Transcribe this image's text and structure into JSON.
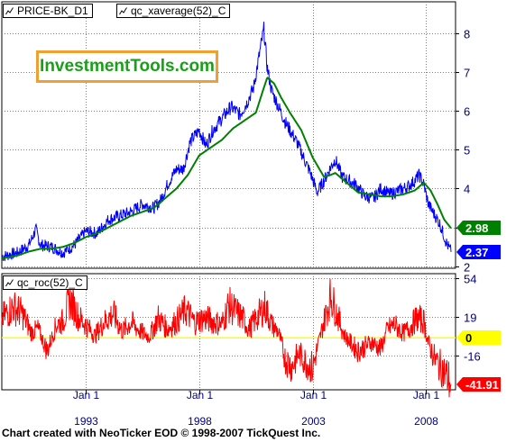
{
  "colors": {
    "price": "#0000ff",
    "average": "#008000",
    "roc": "#ff0000",
    "zero_line": "#ffff00",
    "axis_text": "#000080",
    "brand_border": "#f0a030",
    "brand_text": "#18a018"
  },
  "legends": {
    "price": "PRICE-BK_D1",
    "average": "qc_xaverage(52)_C",
    "roc": "qc_roc(52)_C",
    "icon": "line-chart-icon"
  },
  "brand": "InvestmentTools.com",
  "footer": "Chart created with NeoTicker EOD © 1998-2007 TickQuest Inc.",
  "chart_data": [
    {
      "type": "line",
      "panel": "price",
      "x_range": [
        1989.3,
        2009.3
      ],
      "ylim": [
        1.95,
        8.8
      ],
      "y_ticks": [
        "2",
        "3",
        "4",
        "5",
        "6",
        "7",
        "8"
      ],
      "grid": true,
      "series": [
        {
          "name": "PRICE-BK_D1",
          "x": [
            1989.3,
            1990.0,
            1990.5,
            1990.8,
            1991.0,
            1991.5,
            1992.0,
            1992.5,
            1993.0,
            1993.5,
            1994.0,
            1994.5,
            1995.0,
            1995.5,
            1996.0,
            1996.3,
            1996.6,
            1997.0,
            1997.3,
            1997.6,
            1998.0,
            1998.3,
            1998.6,
            1999.0,
            1999.4,
            1999.8,
            2000.1,
            2000.4,
            2000.7,
            2000.85,
            2001.0,
            2001.2,
            2001.5,
            2001.8,
            2002.0,
            2002.3,
            2002.6,
            2002.9,
            2003.2,
            2003.5,
            2003.8,
            2004.0,
            2004.3,
            2004.6,
            2004.9,
            2005.3,
            2005.7,
            2006.0,
            2006.4,
            2006.8,
            2007.2,
            2007.5,
            2007.7,
            2007.9,
            2008.1,
            2008.3,
            2008.6,
            2008.9,
            2009.1
          ],
          "y": [
            2.25,
            2.35,
            2.55,
            2.95,
            2.55,
            2.5,
            2.35,
            2.55,
            2.9,
            2.85,
            3.2,
            3.3,
            3.4,
            3.6,
            3.5,
            3.7,
            4.1,
            4.5,
            4.5,
            5.2,
            5.5,
            5.1,
            5.5,
            5.8,
            6.1,
            5.9,
            6.2,
            6.6,
            7.6,
            8.1,
            7.1,
            6.5,
            6.1,
            5.7,
            5.5,
            5.2,
            4.8,
            4.4,
            3.9,
            4.2,
            4.55,
            4.75,
            4.3,
            4.2,
            4.1,
            3.8,
            3.75,
            4.0,
            3.85,
            3.95,
            4.05,
            4.2,
            4.35,
            4.1,
            3.6,
            3.4,
            3.1,
            2.6,
            2.37
          ]
        },
        {
          "name": "qc_xaverage(52)_C",
          "x": [
            1989.3,
            1990.0,
            1990.5,
            1991.0,
            1991.5,
            1992.0,
            1992.5,
            1993.0,
            1993.5,
            1994.0,
            1994.5,
            1995.0,
            1995.5,
            1996.0,
            1996.5,
            1997.0,
            1997.5,
            1998.0,
            1998.5,
            1999.0,
            1999.5,
            2000.0,
            2000.5,
            2000.8,
            2001.0,
            2001.3,
            2001.6,
            2002.0,
            2002.5,
            2003.0,
            2003.5,
            2003.8,
            2004.0,
            2004.5,
            2005.0,
            2005.5,
            2006.0,
            2006.5,
            2007.0,
            2007.5,
            2007.9,
            2008.2,
            2008.5,
            2008.8,
            2009.1
          ],
          "y": [
            2.2,
            2.28,
            2.38,
            2.45,
            2.45,
            2.5,
            2.6,
            2.75,
            2.85,
            3.0,
            3.15,
            3.3,
            3.4,
            3.5,
            3.75,
            4.0,
            4.35,
            4.85,
            5.05,
            5.25,
            5.55,
            5.75,
            5.95,
            6.5,
            6.85,
            6.7,
            6.35,
            5.95,
            5.5,
            4.8,
            4.3,
            4.35,
            4.4,
            4.15,
            3.9,
            3.85,
            3.8,
            3.8,
            3.85,
            3.95,
            4.15,
            3.95,
            3.6,
            3.2,
            2.98
          ]
        }
      ],
      "last_values": {
        "average": "2.98",
        "price": "2.37"
      }
    },
    {
      "type": "line",
      "panel": "roc",
      "x_range": [
        1989.3,
        2009.3
      ],
      "ylim": [
        -47,
        58
      ],
      "y_ticks": [
        "54",
        "19",
        "-16"
      ],
      "grid": true,
      "zero_line": 0,
      "series": [
        {
          "name": "qc_roc(52)_C",
          "x": [
            1989.3,
            1989.8,
            1990.2,
            1990.6,
            1990.9,
            1991.3,
            1991.7,
            1992.0,
            1992.3,
            1992.7,
            1993.0,
            1993.4,
            1993.8,
            1994.2,
            1994.6,
            1995.0,
            1995.4,
            1995.8,
            1996.2,
            1996.6,
            1997.0,
            1997.4,
            1997.8,
            1998.2,
            1998.6,
            1999.0,
            1999.3,
            1999.6,
            1999.9,
            2000.2,
            2000.6,
            2000.9,
            2001.2,
            2001.5,
            2001.8,
            2002.1,
            2002.4,
            2002.7,
            2003.0,
            2003.2,
            2003.5,
            2003.8,
            2004.1,
            2004.4,
            2004.7,
            2005.0,
            2005.3,
            2005.6,
            2006.0,
            2006.3,
            2006.6,
            2007.0,
            2007.3,
            2007.6,
            2007.9,
            2008.1,
            2008.4,
            2008.7,
            2009.0,
            2009.1
          ],
          "y": [
            18,
            28,
            22,
            5,
            8,
            -12,
            12,
            15,
            35,
            18,
            12,
            2,
            14,
            22,
            6,
            14,
            6,
            1,
            18,
            8,
            15,
            25,
            14,
            18,
            15,
            12,
            30,
            24,
            18,
            8,
            20,
            28,
            12,
            5,
            -20,
            -26,
            -14,
            -22,
            -28,
            -10,
            15,
            38,
            20,
            2,
            -5,
            -12,
            -8,
            -4,
            -10,
            8,
            12,
            4,
            10,
            18,
            15,
            -5,
            -20,
            -28,
            -38,
            -41.91
          ]
        }
      ],
      "last_values": {
        "roc": "-41.91",
        "zero": "0"
      }
    }
  ],
  "x_axis": {
    "ticks": [
      {
        "month": "Jan 1",
        "year": "1993",
        "x": 1993.0
      },
      {
        "month": "Jan 1",
        "year": "1998",
        "x": 1998.0
      },
      {
        "month": "Jan 1",
        "year": "2003",
        "x": 2003.0
      },
      {
        "month": "Jan 1",
        "year": "2008",
        "x": 2008.0
      }
    ]
  }
}
